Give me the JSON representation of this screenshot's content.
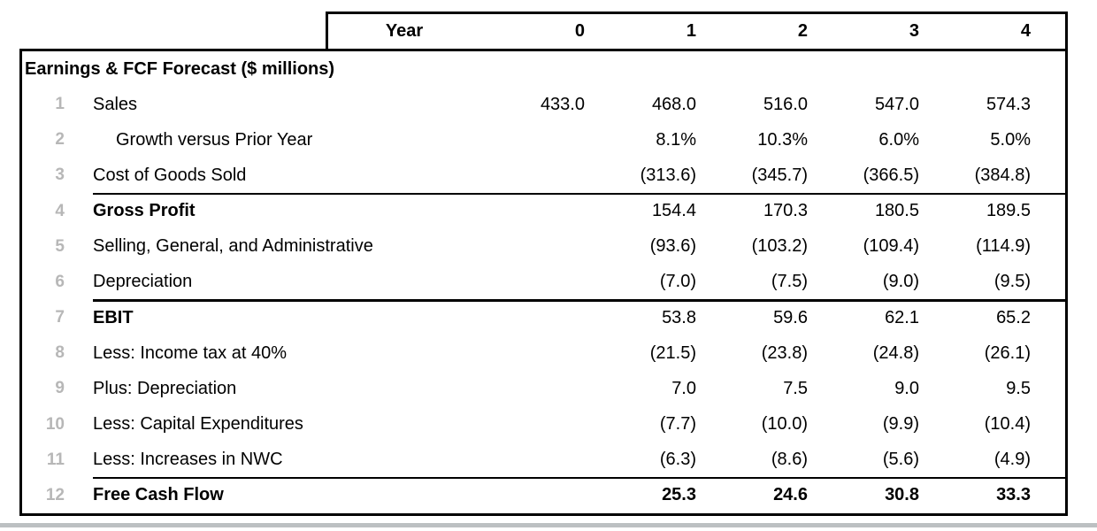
{
  "table": {
    "title": "Earnings & FCF Forecast ($ millions)",
    "header": {
      "year_label": "Year",
      "columns": [
        "0",
        "1",
        "2",
        "3",
        "4"
      ]
    },
    "rows": [
      {
        "num": "1",
        "label": "Sales",
        "values": [
          "433.0",
          "468.0",
          "516.0",
          "547.0",
          "574.3"
        ]
      },
      {
        "num": "2",
        "label": "Growth versus Prior Year",
        "values": [
          "",
          "8.1%",
          "10.3%",
          "6.0%",
          "5.0%"
        ]
      },
      {
        "num": "3",
        "label": "Cost of Goods Sold",
        "values": [
          "",
          "(313.6)",
          "(345.7)",
          "(366.5)",
          "(384.8)"
        ]
      },
      {
        "num": "4",
        "label": "Gross Profit",
        "values": [
          "",
          "154.4",
          "170.3",
          "180.5",
          "189.5"
        ]
      },
      {
        "num": "5",
        "label": "Selling, General, and Administrative",
        "values": [
          "",
          "(93.6)",
          "(103.2)",
          "(109.4)",
          "(114.9)"
        ]
      },
      {
        "num": "6",
        "label": "Depreciation",
        "values": [
          "",
          "(7.0)",
          "(7.5)",
          "(9.0)",
          "(9.5)"
        ]
      },
      {
        "num": "7",
        "label": "EBIT",
        "values": [
          "",
          "53.8",
          "59.6",
          "62.1",
          "65.2"
        ]
      },
      {
        "num": "8",
        "label": "Less: Income tax at 40%",
        "values": [
          "",
          "(21.5)",
          "(23.8)",
          "(24.8)",
          "(26.1)"
        ]
      },
      {
        "num": "9",
        "label": "Plus: Depreciation",
        "values": [
          "",
          "7.0",
          "7.5",
          "9.0",
          "9.5"
        ]
      },
      {
        "num": "10",
        "label": "Less: Capital Expenditures",
        "values": [
          "",
          "(7.7)",
          "(10.0)",
          "(9.9)",
          "(10.4)"
        ]
      },
      {
        "num": "11",
        "label": "Less: Increases in NWC",
        "values": [
          "",
          "(6.3)",
          "(8.6)",
          "(5.6)",
          "(4.9)"
        ]
      },
      {
        "num": "12",
        "label": "Free Cash Flow",
        "values": [
          "",
          "25.3",
          "24.6",
          "30.8",
          "33.3"
        ]
      }
    ],
    "colors": {
      "row_number_gray": "#b7b7b7",
      "table_border": "#000000",
      "bottom_rule_gray": "#bcc0c2"
    }
  }
}
